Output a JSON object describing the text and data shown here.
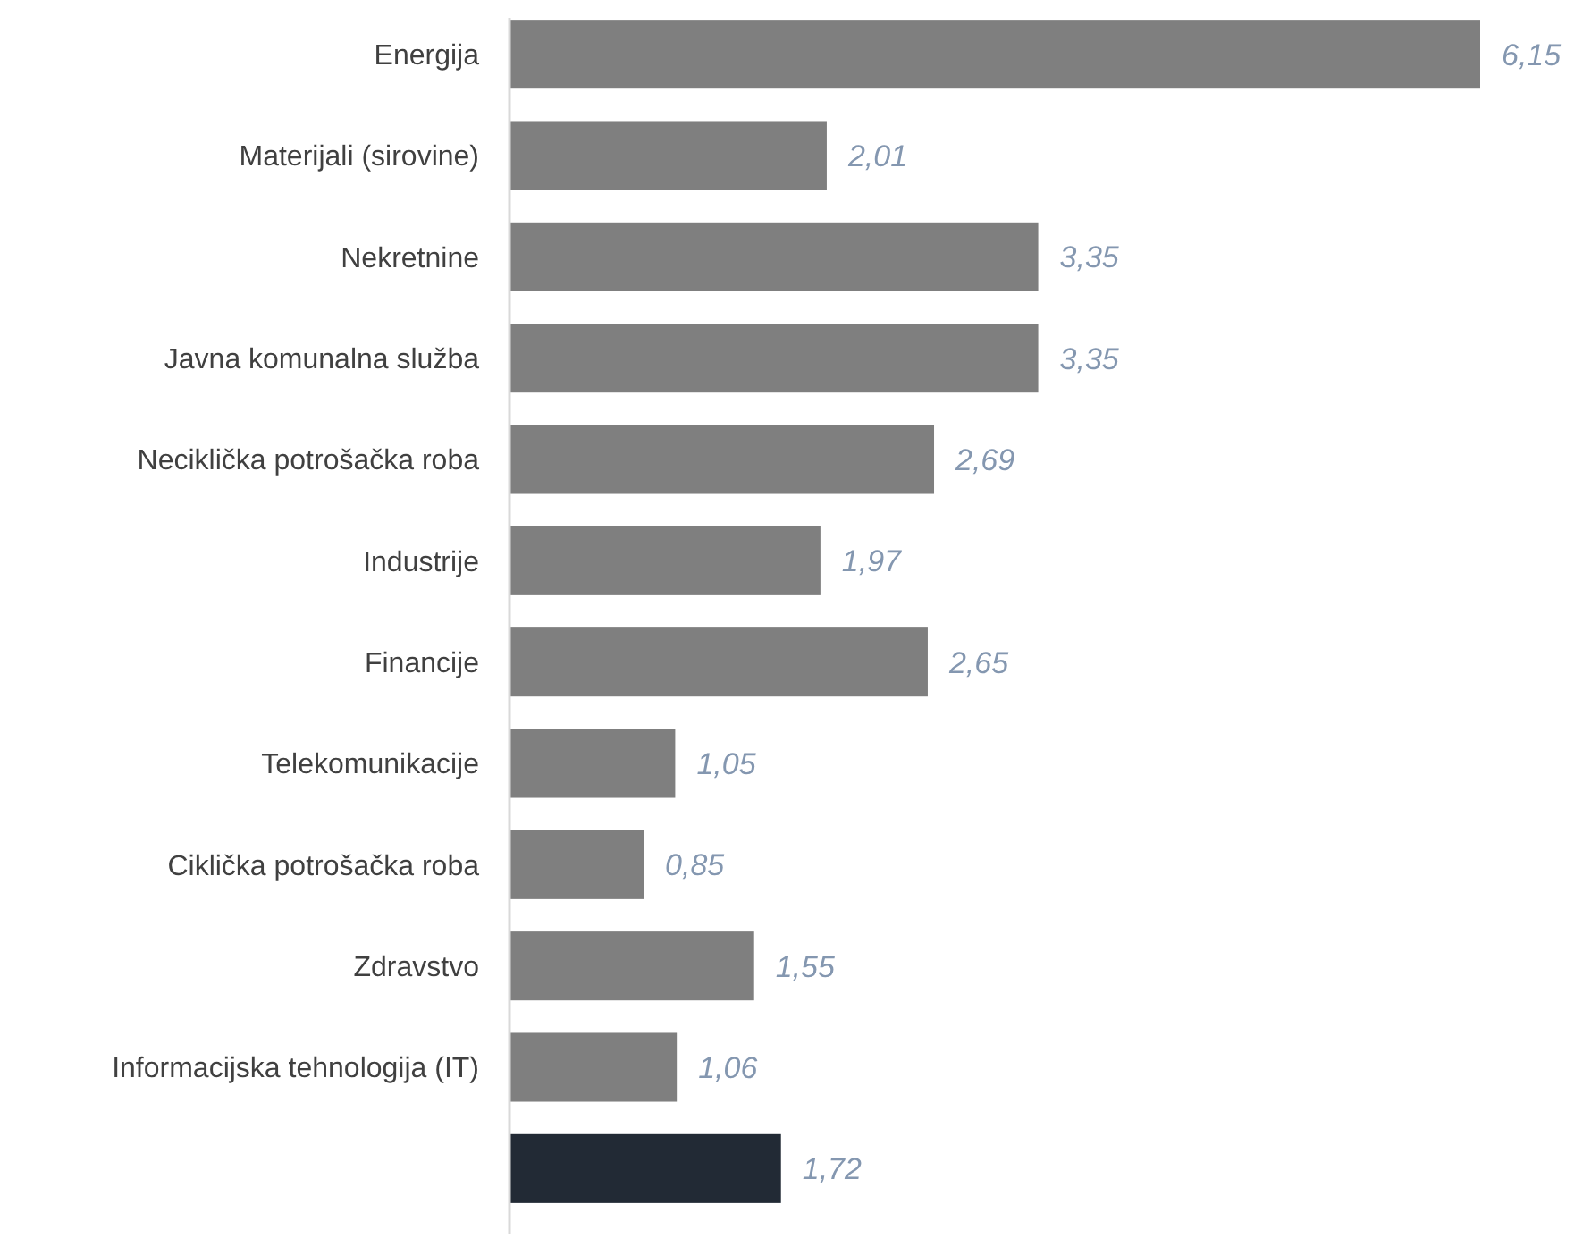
{
  "chart_data": {
    "type": "bar",
    "orientation": "horizontal",
    "categories": [
      "Energija",
      "Materijali (sirovine)",
      "Nekretnine",
      "Javna komunalna služba",
      "Neciklička potrošačka roba",
      "Industrije",
      "Financije",
      "Telekomunikacije",
      "Ciklička potrošačka roba",
      "Zdravstvo",
      "Informacijska tehnologija (IT)",
      null
    ],
    "values": [
      6.15,
      2.01,
      3.35,
      3.35,
      2.69,
      1.97,
      2.65,
      1.05,
      0.85,
      1.55,
      1.06,
      1.72
    ],
    "colors": [
      "#7f7f7f",
      "#7f7f7f",
      "#7f7f7f",
      "#7f7f7f",
      "#7f7f7f",
      "#7f7f7f",
      "#7f7f7f",
      "#7f7f7f",
      "#7f7f7f",
      "#7f7f7f",
      "#7f7f7f",
      "#222a35"
    ],
    "value_labels": [
      "6,15",
      "2,01",
      "3,35",
      "3,35",
      "2,69",
      "1,97",
      "2,65",
      "1,05",
      "0,85",
      "1,55",
      "1,06",
      "1,72"
    ]
  }
}
